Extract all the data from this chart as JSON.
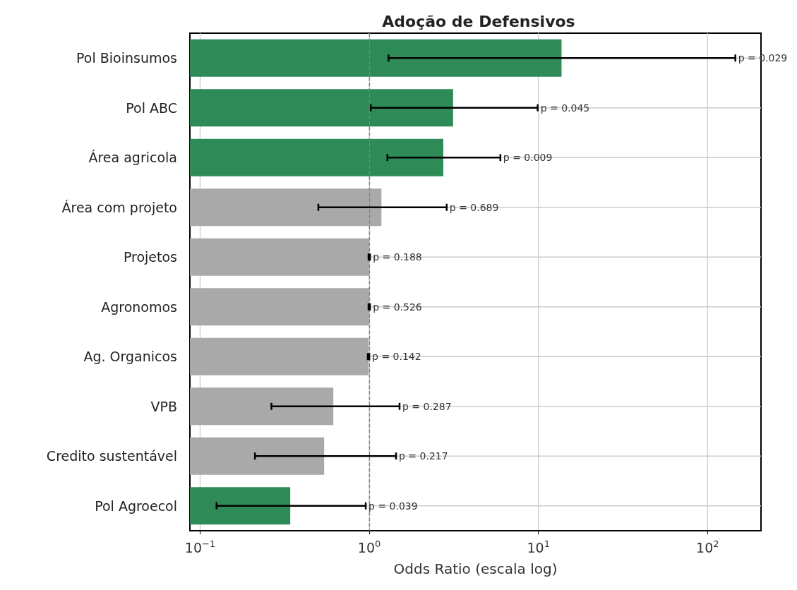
{
  "chart_data": {
    "type": "bar",
    "orientation": "horizontal",
    "title": "Adoção de Defensivos",
    "xlabel": "Odds Ratio (escala log)",
    "categories": [
      "Pol Bioinsumos",
      "Pol ABC",
      "Área agricola",
      "Área com projeto",
      "Projetos",
      "Agronomos",
      "Ag. Organicos",
      "VPB",
      "Credito sustentável",
      "Pol Agroecol"
    ],
    "values": [
      13.7,
      3.13,
      2.74,
      1.18,
      1.0,
      1.0,
      0.99,
      0.613,
      0.541,
      0.341
    ],
    "colors": [
      "#2e8b57",
      "#2e8b57",
      "#2e8b57",
      "#a9a9a9",
      "#a9a9a9",
      "#a9a9a9",
      "#a9a9a9",
      "#a9a9a9",
      "#a9a9a9",
      "#2e8b57"
    ],
    "errors": [
      [
        1.3,
        146
      ],
      [
        1.02,
        9.9
      ],
      [
        1.28,
        5.96
      ],
      [
        0.5,
        2.87
      ],
      [
        0.99,
        1.01
      ],
      [
        0.99,
        1.01
      ],
      [
        0.98,
        1.0
      ],
      [
        0.264,
        1.51
      ],
      [
        0.211,
        1.44
      ],
      [
        0.125,
        0.953
      ]
    ],
    "log": "x",
    "xlim": [
      0.087,
      207
    ],
    "xticks": [
      {
        "value": 0.1,
        "label": "10$^{−1}$"
      },
      {
        "value": 1,
        "label": "10$^{0}$"
      },
      {
        "value": 10,
        "label": "10$^{1}$"
      },
      {
        "value": 100,
        "label": "10$^{2}$"
      }
    ],
    "grid": true,
    "ref_lines": [
      {
        "axis": "x",
        "value": 1,
        "color": "#808080",
        "line_style": "dashed"
      }
    ],
    "annotations": [
      {
        "text": "p = 0.029",
        "x": 146,
        "y": "Pol Bioinsumos"
      },
      {
        "text": "p = 0.045",
        "x": 9.9,
        "y": "Pol ABC"
      },
      {
        "text": "p = 0.009",
        "x": 5.96,
        "y": "Área agricola"
      },
      {
        "text": "p = 0.689",
        "x": 2.87,
        "y": "Área com projeto"
      },
      {
        "text": "p = 0.188",
        "x": 1.01,
        "y": "Projetos"
      },
      {
        "text": "p = 0.526",
        "x": 1.01,
        "y": "Agronomos"
      },
      {
        "text": "p = 0.142",
        "x": 1.0,
        "y": "Ag. Organicos"
      },
      {
        "text": "p = 0.287",
        "x": 1.51,
        "y": "VPB"
      },
      {
        "text": "p = 0.217",
        "x": 1.44,
        "y": "Credito sustentável"
      },
      {
        "text": "p = 0.039",
        "x": 0.953,
        "y": "Pol Agroecol"
      }
    ]
  }
}
